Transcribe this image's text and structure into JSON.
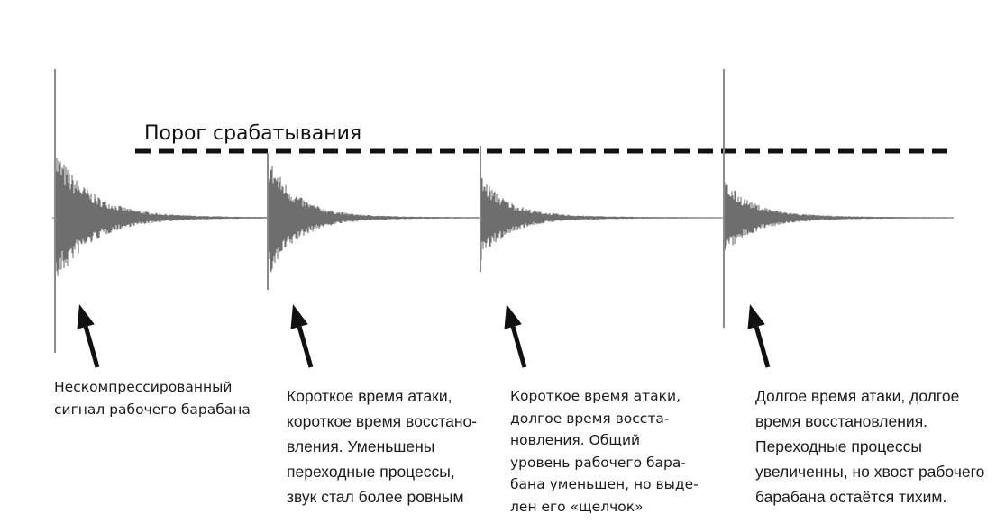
{
  "threshold_label": "Порог срабатывания",
  "captions": [
    "Нескомпрессированный\nсигнал рабочего барабана",
    "Короткое время атаки,\nкороткое время восстано-\nвления. Уменьшены\nпереходные процессы,\nзвук стал более ровным",
    "Короткое время атаки,\nдолгое  время восста-\nновления. Общий\nуровень рабочего бара-\nбана уменьшен, но выде-\nлен его «щелчок»",
    "Долгое время атаки, долгое\nвремя восстановления.\nПереходные процессы\nувеличенны, но хвост рабочего\nбарабана остаётся тихим."
  ],
  "colors": {
    "waveform": "#6e6e6e",
    "spike": "#8a8a8a",
    "line": "#111111"
  }
}
